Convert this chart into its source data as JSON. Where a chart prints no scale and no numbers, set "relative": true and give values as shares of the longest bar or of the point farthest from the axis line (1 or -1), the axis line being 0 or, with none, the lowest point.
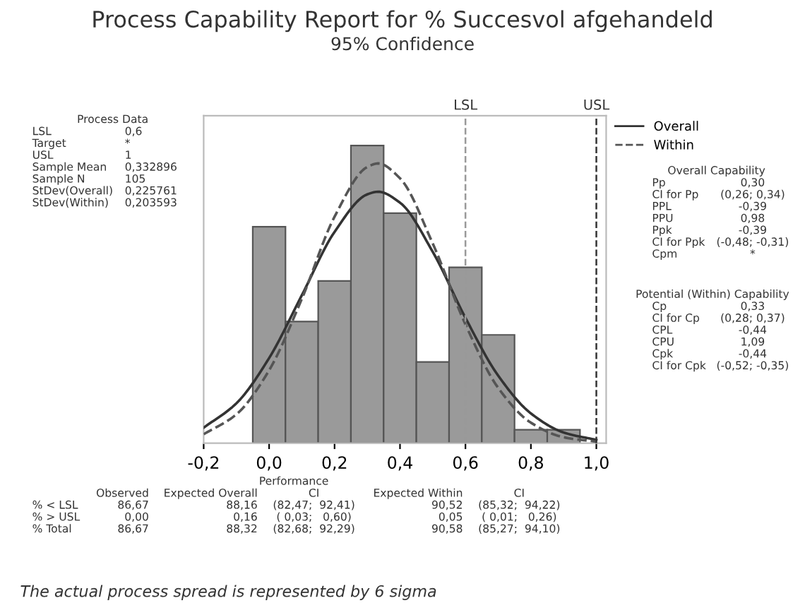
{
  "chart_data": {
    "type": "histogram",
    "title": "Process Capability Report for % Succesvol afgehandeld",
    "subtitle": "95% Confidence",
    "relative": true,
    "tick_labels": "x",
    "legend": "right",
    "grid": false,
    "bins": [
      -0.05,
      0.05,
      0.15,
      0.25,
      0.35,
      0.45,
      0.55,
      0.65,
      0.75,
      0.85,
      0.95
    ],
    "values": [
      0.727,
      0.409,
      0.545,
      1,
      0.773,
      0.273,
      0.591,
      0.364,
      0.045,
      0.045
    ],
    "color": "#9a9a9a",
    "series": [
      {
        "name": "Overall",
        "type": "line",
        "color": "#333333",
        "line_style": "solid",
        "x": [
          -0.2,
          -0.1,
          0,
          0.1,
          0.2,
          0.3,
          0.333,
          0.4,
          0.5,
          0.6,
          0.7,
          0.8,
          0.9,
          1.0
        ],
        "values": [
          0.052,
          0.134,
          0.286,
          0.497,
          0.71,
          0.836,
          0.845,
          0.808,
          0.643,
          0.421,
          0.227,
          0.1,
          0.036,
          0.011
        ]
      },
      {
        "name": "Within",
        "type": "line",
        "color": "#555555",
        "line_style": "dashed",
        "x": [
          -0.2,
          -0.1,
          0,
          0.1,
          0.2,
          0.3,
          0.333,
          0.4,
          0.5,
          0.6,
          0.7,
          0.8,
          0.9,
          1.0
        ],
        "values": [
          0.03,
          0.097,
          0.245,
          0.485,
          0.761,
          0.928,
          0.94,
          0.89,
          0.671,
          0.399,
          0.186,
          0.069,
          0.02,
          0.005
        ]
      }
    ],
    "xlim": [
      -0.2,
      1.03
    ],
    "xticks": [
      {
        "value": -0.2,
        "label": "-0,2"
      },
      {
        "value": 0,
        "label": "0,0"
      },
      {
        "value": 0.2,
        "label": "0,2"
      },
      {
        "value": 0.4,
        "label": "0,4"
      },
      {
        "value": 0.6,
        "label": "0,6"
      },
      {
        "value": 0.8,
        "label": "0,8"
      },
      {
        "value": 1.0,
        "label": "1,0"
      }
    ],
    "ref_lines": [
      {
        "axis": "x",
        "value": 0.6,
        "label": "LSL",
        "color": "#999999",
        "line_style": "dashed"
      },
      {
        "axis": "x",
        "value": 1.0,
        "label": "USL",
        "color": "#333333",
        "line_style": "dashed"
      }
    ],
    "annotations": [
      "Process Data",
      "LSL\nTarget\nUSL\nSample Mean\nSample N\nStDev(Overall)\nStDev(Within)",
      "0,6\n*\n1\n0,332896\n105\n0,225761\n0,203593",
      "Overall Capability",
      "Pp\nCI for Pp\nPPL\nPPU\nPpk\nCI for Ppk\nCpm",
      "0,30\n(0,26; 0,34)\n-0,39\n0,98\n-0,39\n(-0,48; -0,31)\n*",
      "Potential (Within) Capability",
      "Cp\nCI for Cp\nCPL\nCPU\nCpk\nCI for Cpk",
      "0,33\n(0,28; 0,37)\n-0,44\n1,09\n-0,44\n(-0,52; -0,35)",
      "Performance",
      "\n% < LSL\n% > USL\n% Total",
      "Observed\n86,67\n0,00\n86,67",
      "Expected Overall\n88,16\n0,16\n88,32",
      "CI\n(82,47;  92,41)\n( 0,03;   0,60)\n(82,68;  92,29)",
      "Expected Within\n90,52\n0,05\n90,58",
      "CI\n(85,32;  94,22)\n( 0,01;   0,26)\n(85,27;  94,10)",
      "The actual process spread is represented by 6 sigma"
    ]
  }
}
